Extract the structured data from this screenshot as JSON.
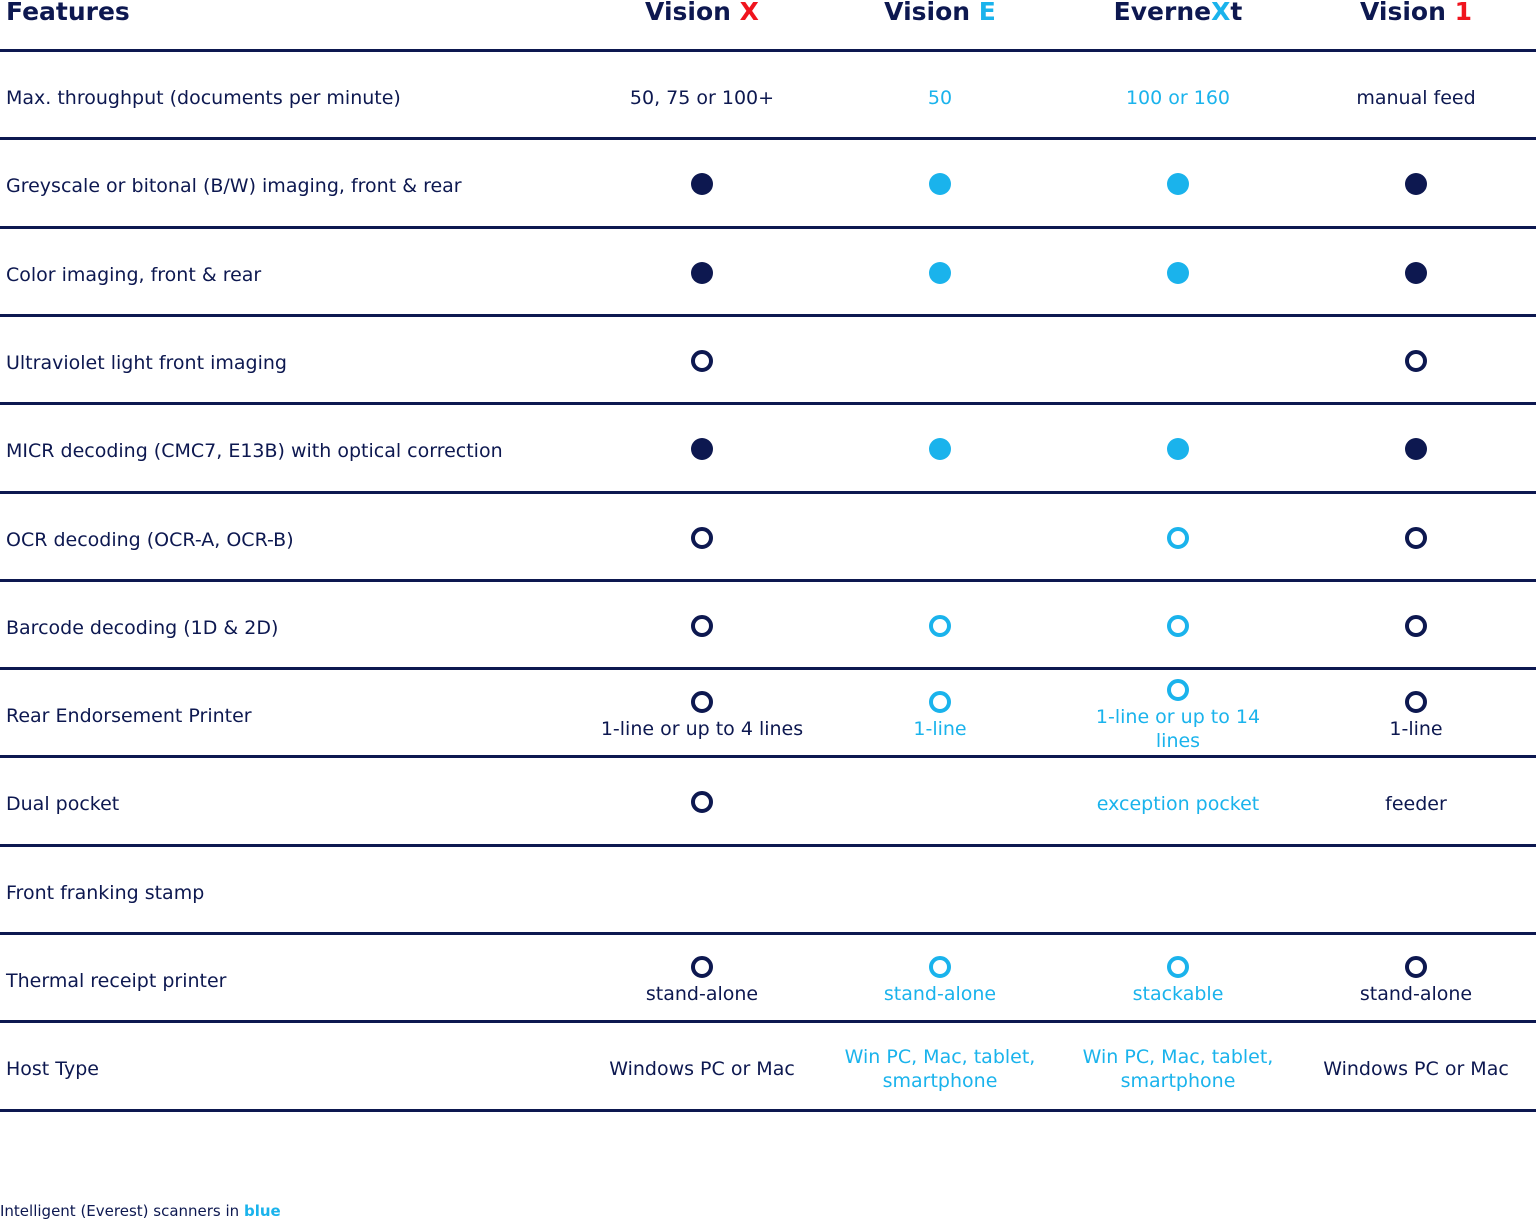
{
  "header": {
    "title": "Features",
    "columns": [
      {
        "parts": [
          "Vision ",
          "X"
        ]
      },
      {
        "parts": [
          "Vision ",
          "E"
        ]
      },
      {
        "parts": [
          "Everne",
          "X",
          "t"
        ]
      },
      {
        "parts": [
          "Vision ",
          "1"
        ]
      }
    ]
  },
  "table": {
    "rows": [
      {
        "feature": "Max. throughput (documents per minute)",
        "cells": [
          "50, 75 or 100+",
          "50",
          "100 or 160",
          "manual feed"
        ]
      },
      {
        "feature": "Greyscale or bitonal (B/W) imaging, front & rear",
        "cells": [
          null,
          null,
          null,
          null
        ]
      },
      {
        "feature": "Color imaging, front & rear",
        "cells": [
          null,
          null,
          null,
          null
        ]
      },
      {
        "feature": "Ultraviolet light front imaging",
        "cells": [
          null,
          null,
          null,
          null
        ]
      },
      {
        "feature": "MICR decoding (CMC7, E13B) with optical correction",
        "cells": [
          null,
          null,
          null,
          null
        ]
      },
      {
        "feature": "OCR decoding (OCR-A, OCR-B)",
        "cells": [
          null,
          null,
          null,
          null
        ]
      },
      {
        "feature": "Barcode decoding (1D & 2D)",
        "cells": [
          null,
          null,
          null,
          null
        ]
      },
      {
        "feature": "Rear Endorsement Printer",
        "cells": [
          "1-line or up to 4 lines",
          "1-line",
          "1-line or up to 14 lines",
          "1-line"
        ]
      },
      {
        "feature": "Dual pocket",
        "cells": [
          null,
          null,
          "exception pocket",
          "feeder"
        ]
      },
      {
        "feature": "Front franking stamp",
        "cells": [
          null,
          null,
          null,
          null
        ]
      },
      {
        "feature": "Thermal receipt printer",
        "cells": [
          "stand-alone",
          "stand-alone",
          "stackable",
          "stand-alone"
        ]
      },
      {
        "feature": "Host Type",
        "cells": [
          "Windows PC or Mac",
          "Win PC, Mac, tablet, smartphone",
          "Win PC, Mac, tablet, smartphone",
          "Windows PC or Mac"
        ]
      }
    ]
  },
  "footer": {
    "parts": [
      "Intelligent (Everest) scanners in ",
      "blue"
    ]
  }
}
